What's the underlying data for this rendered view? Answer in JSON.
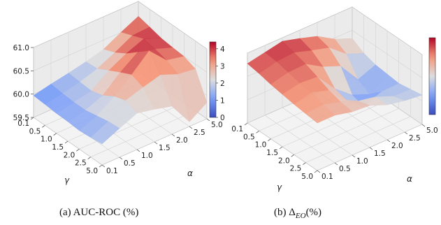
{
  "captions": {
    "a": "(a)  AUC-ROC (%)",
    "b_prefix": "(b)  Δ",
    "b_sub": "EO",
    "b_suffix": "(%)"
  },
  "chart_data": [
    {
      "type": "surface3d",
      "title": "",
      "xlabel": "γ",
      "ylabel": "α",
      "zlabel": "",
      "gamma": [
        0.1,
        0.5,
        1.0,
        1.5,
        2.0,
        2.5,
        5.0
      ],
      "alpha": [
        0.1,
        0.5,
        1.0,
        1.5,
        2.0,
        2.5,
        5.0
      ],
      "gamma_tick_labels": [
        "0.1",
        "0.5",
        "1.0",
        "1.5",
        "2.0",
        "2.5",
        "5.0"
      ],
      "alpha_tick_labels": [
        "0.1",
        "0.5",
        "1.0",
        "1.5",
        "2.0",
        "2.5",
        "5.0"
      ],
      "zlim": [
        59.5,
        61.0
      ],
      "z_ticks": [
        "59.5",
        "60.0",
        "60.5",
        "61.0"
      ],
      "colorbar": {
        "range": [
          0,
          4.4
        ],
        "ticks": [
          "0",
          "1",
          "2",
          "3",
          "4"
        ],
        "colormap": "coolwarm"
      },
      "z": [
        [
          59.97,
          60.05,
          60.12,
          60.2,
          60.3,
          60.5,
          60.68
        ],
        [
          59.95,
          60.02,
          60.1,
          60.22,
          60.4,
          60.6,
          60.62
        ],
        [
          59.93,
          60.0,
          60.08,
          60.35,
          60.55,
          60.7,
          60.55
        ],
        [
          59.92,
          60.0,
          60.15,
          60.48,
          60.75,
          60.65,
          60.52
        ],
        [
          59.9,
          60.05,
          60.3,
          60.6,
          60.95,
          60.58,
          60.5
        ],
        [
          59.92,
          60.1,
          60.38,
          60.5,
          60.6,
          60.45,
          60.4
        ],
        [
          59.95,
          60.12,
          60.28,
          60.2,
          60.1,
          59.6,
          59.85
        ]
      ],
      "color_values": [
        [
          0.9,
          1.2,
          1.5,
          1.8,
          2.0,
          3.2,
          3.6
        ],
        [
          1.0,
          1.3,
          1.8,
          2.1,
          2.8,
          3.8,
          4.0
        ],
        [
          1.1,
          1.4,
          1.9,
          2.6,
          3.5,
          4.3,
          3.8
        ],
        [
          1.2,
          1.5,
          2.2,
          3.2,
          4.2,
          4.1,
          3.6
        ],
        [
          1.1,
          1.6,
          2.6,
          3.6,
          3.9,
          3.5,
          3.3
        ],
        [
          1.3,
          1.8,
          2.4,
          2.7,
          3.0,
          2.9,
          2.8
        ],
        [
          1.5,
          2.0,
          2.2,
          2.1,
          2.0,
          2.3,
          2.5
        ]
      ]
    },
    {
      "type": "surface3d",
      "title": "",
      "xlabel": "γ",
      "ylabel": "α",
      "zlabel": "",
      "gamma": [
        0.1,
        0.5,
        1.0,
        1.5,
        2.0,
        2.5,
        5.0
      ],
      "alpha": [
        0.1,
        0.5,
        1.0,
        1.5,
        2.0,
        2.5,
        5.0
      ],
      "gamma_tick_labels": [
        "0.1",
        "0.5",
        "1.0",
        "1.5",
        "2.0",
        "2.5",
        "5.0"
      ],
      "alpha_tick_labels": [
        "0.1",
        "0.5",
        "1.0",
        "1.5",
        "2.0",
        "2.5",
        "5.0"
      ],
      "zlim": [
        0,
        10
      ],
      "z_ticks": [],
      "colorbar": {
        "range": [
          0,
          10
        ],
        "ticks": [],
        "colormap": "coolwarm"
      },
      "z": [
        [
          8.5,
          9.0,
          9.5,
          8.8,
          8.0,
          6.5,
          5.5
        ],
        [
          8.2,
          8.8,
          9.0,
          8.2,
          7.5,
          5.5,
          4.5
        ],
        [
          7.8,
          8.4,
          8.5,
          7.0,
          6.0,
          3.0,
          4.0
        ],
        [
          7.5,
          8.0,
          7.8,
          5.0,
          3.0,
          2.0,
          3.8
        ],
        [
          7.2,
          7.8,
          7.0,
          4.5,
          2.5,
          3.5,
          3.6
        ],
        [
          7.0,
          7.2,
          6.5,
          5.5,
          5.0,
          4.0,
          3.9
        ],
        [
          6.8,
          6.8,
          6.2,
          6.0,
          5.0,
          4.5,
          4.2
        ]
      ]
    }
  ]
}
